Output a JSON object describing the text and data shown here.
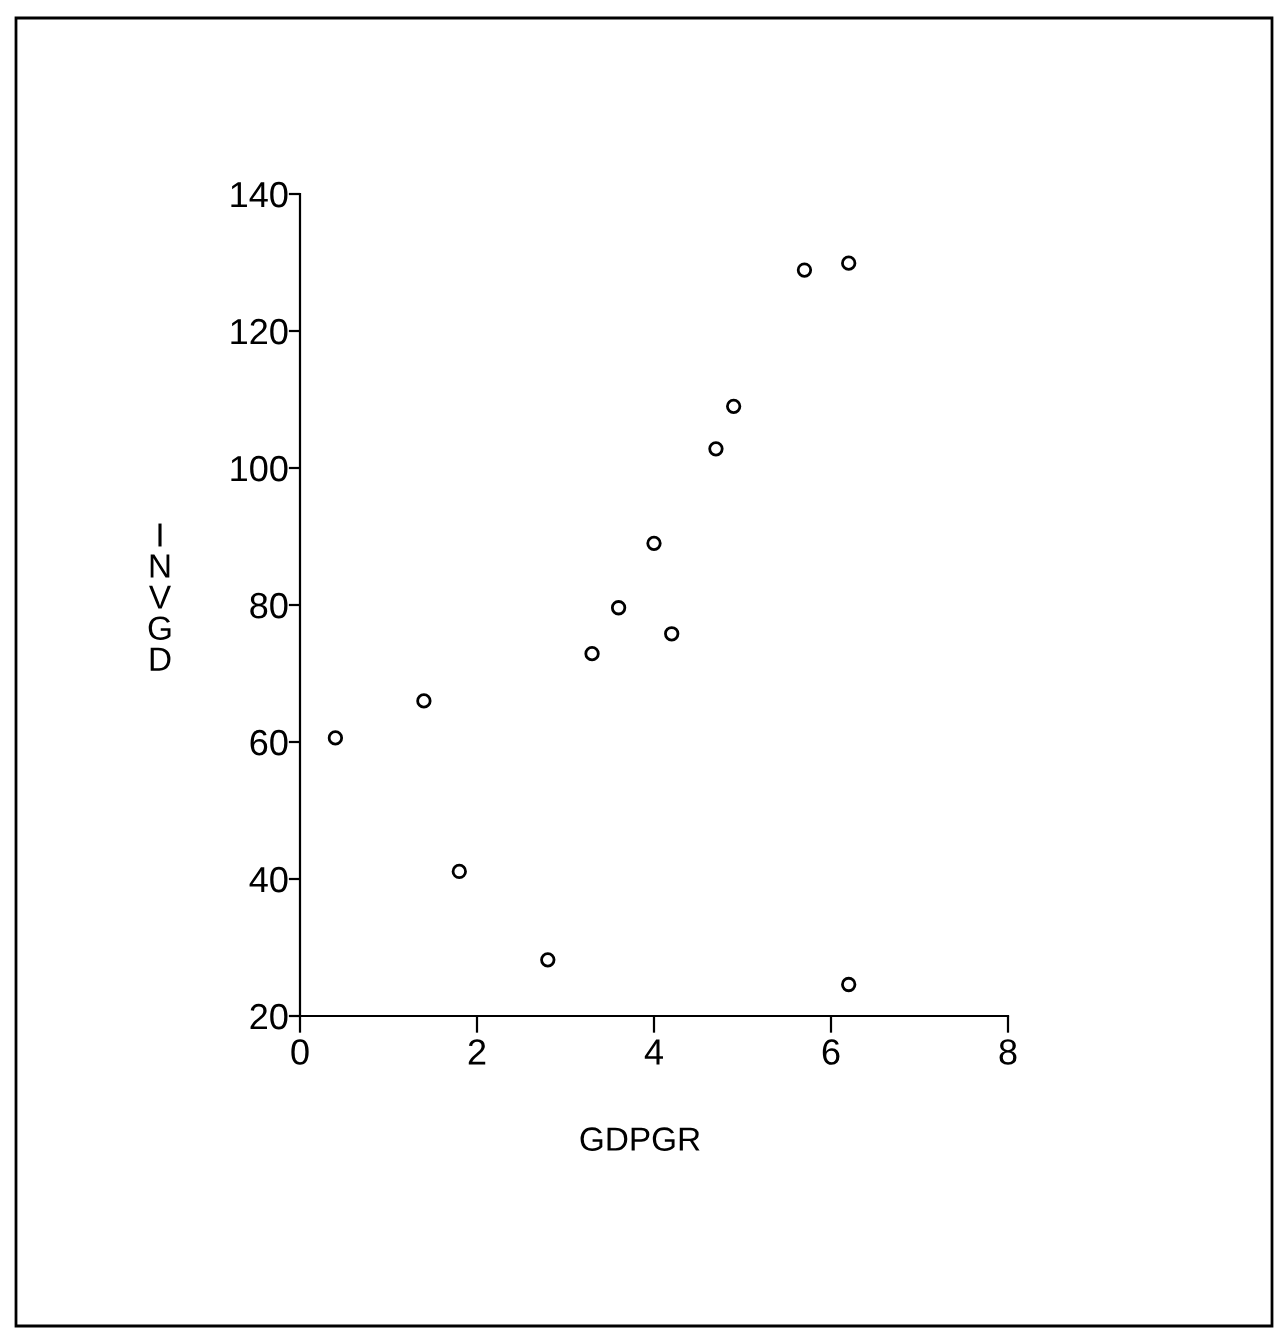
{
  "chart_data": {
    "type": "scatter",
    "xlabel": "GDPGR",
    "ylabel": "INVGD",
    "x": [
      0.4,
      1.4,
      1.8,
      2.8,
      3.3,
      3.6,
      4.0,
      4.2,
      4.7,
      4.9,
      5.7,
      6.2,
      6.2
    ],
    "values": [
      60.6,
      66.0,
      41.1,
      28.2,
      72.9,
      79.6,
      89.0,
      75.8,
      102.8,
      109.0,
      128.9,
      129.9,
      24.6
    ],
    "color": "#000000",
    "marker": "circle",
    "grid": false,
    "legend": false,
    "xlim": [
      0,
      8
    ],
    "xticks": [
      0,
      2,
      4,
      6,
      8
    ],
    "ylim": [
      20,
      140
    ],
    "yticks": [
      20,
      40,
      60,
      80,
      100,
      120,
      140
    ]
  }
}
